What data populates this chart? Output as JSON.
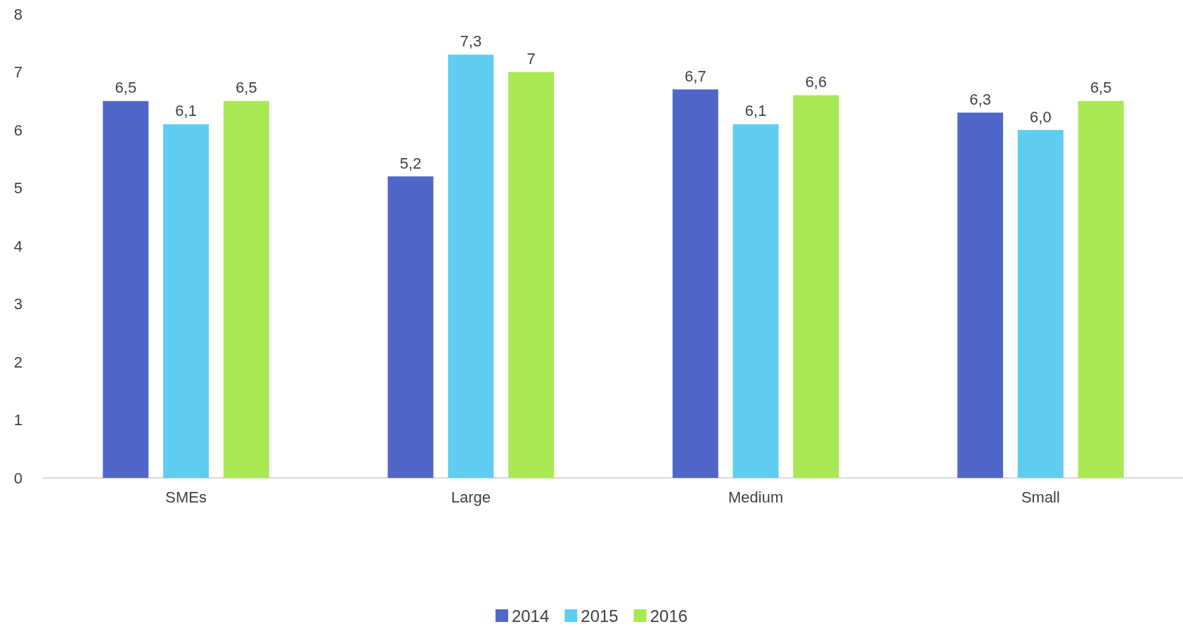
{
  "chart_data": {
    "type": "bar",
    "categories": [
      "SMEs",
      "Large",
      "Medium",
      "Small"
    ],
    "series": [
      {
        "name": "2014",
        "color": "#4f67c8",
        "values": [
          6.5,
          5.2,
          6.7,
          6.3
        ],
        "value_labels": [
          "6,5",
          "5,2",
          "6,7",
          "6,3"
        ]
      },
      {
        "name": "2015",
        "color": "#5ecdf0",
        "values": [
          6.1,
          7.3,
          6.1,
          6.0
        ],
        "value_labels": [
          "6,1",
          "7,3",
          "6,1",
          "6,0"
        ]
      },
      {
        "name": "2016",
        "color": "#a8e853",
        "values": [
          6.5,
          7,
          6.6,
          6.5
        ],
        "value_labels": [
          "6,5",
          "7",
          "6,6",
          "6,5"
        ]
      }
    ],
    "ylim": [
      0,
      8
    ],
    "yticks": [
      0,
      1,
      2,
      3,
      4,
      5,
      6,
      7,
      8
    ],
    "grid": false,
    "legend": "bottom"
  }
}
